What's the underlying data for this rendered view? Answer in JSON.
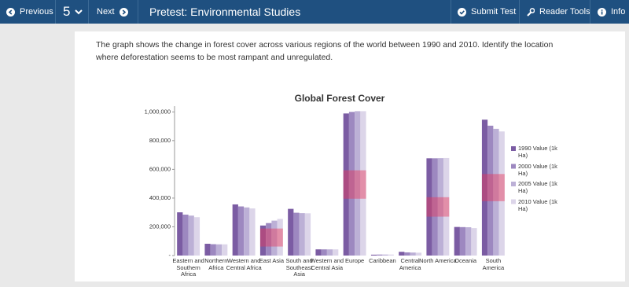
{
  "toolbar": {
    "previous": "Previous",
    "question_number": "5",
    "next": "Next",
    "title": "Pretest: Environmental Studies",
    "submit": "Submit Test",
    "reader_tools": "Reader Tools",
    "info": "Info"
  },
  "question": {
    "text": "The graph shows the change in forest cover across various regions of the world between 1990 and 2010. Identify the location where deforestation seems to be most rampant and unregulated."
  },
  "chart_data": {
    "type": "bar",
    "title": "Global Forest Cover",
    "categories": [
      "Eastern and Southern Africa",
      "Northern Africa",
      "Western and Central Africa",
      "East Asia",
      "South and Southeast Asia",
      "Western and Central Asia",
      "Europe",
      "Caribbean",
      "Central America",
      "North America",
      "Oceania",
      "South America"
    ],
    "series": [
      {
        "name": "1990 Value (1k Ha)",
        "color": "#7b5ca3",
        "values": [
          301000,
          82000,
          356000,
          209000,
          325000,
          43000,
          989000,
          6000,
          26000,
          677000,
          199000,
          946000
        ]
      },
      {
        "name": "2000 Value (1k Ha)",
        "color": "#9d88c0",
        "values": [
          285000,
          79000,
          342000,
          226000,
          298000,
          43000,
          1000000,
          7000,
          22000,
          677000,
          198000,
          904000
        ]
      },
      {
        "name": "2005 Value (1k Ha)",
        "color": "#bcb0d6",
        "values": [
          278000,
          78000,
          335000,
          243000,
          295000,
          43000,
          1005000,
          7000,
          21000,
          678000,
          197000,
          882000
        ]
      },
      {
        "name": "2010 Value (1k Ha)",
        "color": "#dcd5e9",
        "values": [
          267000,
          78000,
          328000,
          255000,
          294000,
          43000,
          1005000,
          7000,
          20000,
          679000,
          191000,
          864000
        ]
      }
    ],
    "ylim": [
      0,
      1040000
    ],
    "yticks": [
      {
        "value": 0,
        "label": "-"
      },
      {
        "value": 200000,
        "label": "200,000"
      },
      {
        "value": 400000,
        "label": "400,000"
      },
      {
        "value": 600000,
        "label": "600,000"
      },
      {
        "value": 800000,
        "label": "800,000"
      },
      {
        "value": 1000000,
        "label": "1,000,000"
      }
    ],
    "legend": "right"
  }
}
